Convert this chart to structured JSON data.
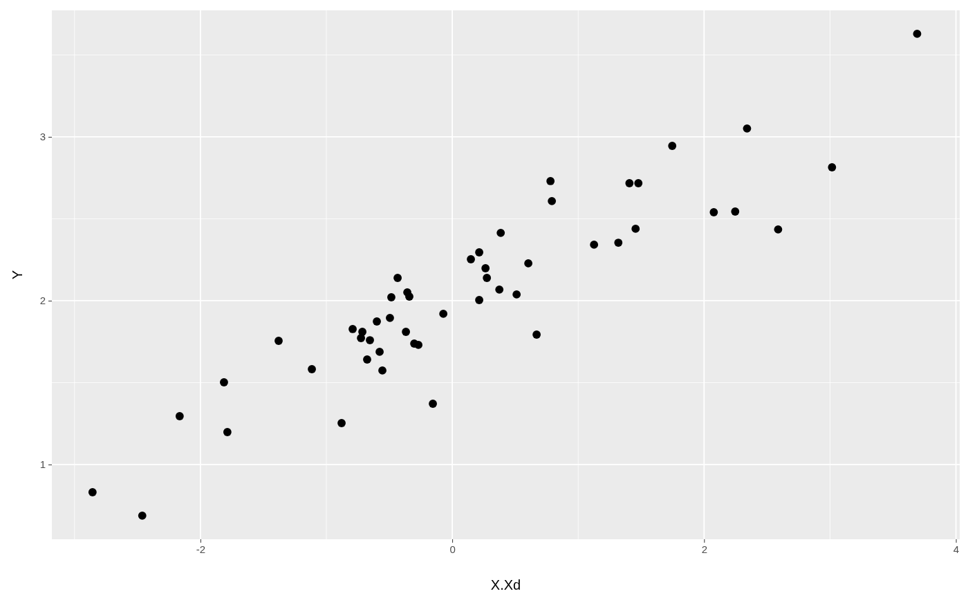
{
  "chart_data": {
    "type": "scatter",
    "xlabel": "X.Xd",
    "ylabel": "Y",
    "xlim": [
      -3.18,
      4.03
    ],
    "ylim": [
      0.544,
      3.772
    ],
    "xticks": [
      -2,
      0,
      2,
      4
    ],
    "yticks": [
      1,
      2,
      3
    ],
    "grid": true,
    "marker": "circle",
    "x": [
      -2.857,
      -2.462,
      -2.165,
      -1.813,
      -1.786,
      -1.379,
      -1.115,
      -0.879,
      -0.791,
      -0.725,
      -0.714,
      -0.676,
      -0.654,
      -0.599,
      -0.577,
      -0.555,
      -0.495,
      -0.484,
      -0.434,
      -0.368,
      -0.357,
      -0.341,
      -0.302,
      -0.269,
      -0.154,
      -0.071,
      0.148,
      0.214,
      0.214,
      0.264,
      0.275,
      0.374,
      0.385,
      0.511,
      0.604,
      0.67,
      0.78,
      0.791,
      1.126,
      1.319,
      1.407,
      1.456,
      1.478,
      1.747,
      2.077,
      2.247,
      2.341,
      2.588,
      3.016,
      3.692
    ],
    "series": [
      {
        "color": "#000000",
        "values": [
          0.831,
          0.688,
          1.295,
          1.502,
          1.198,
          1.755,
          1.582,
          1.253,
          1.827,
          1.772,
          1.81,
          1.641,
          1.759,
          1.873,
          1.688,
          1.574,
          1.895,
          2.021,
          2.139,
          1.81,
          2.051,
          2.025,
          1.738,
          1.73,
          1.371,
          1.92,
          2.253,
          2.295,
          2.004,
          2.198,
          2.139,
          2.068,
          2.414,
          2.038,
          2.228,
          1.793,
          2.73,
          2.608,
          2.342,
          2.354,
          2.717,
          2.439,
          2.717,
          2.945,
          2.54,
          2.544,
          3.051,
          2.435,
          2.814,
          3.629
        ]
      }
    ]
  }
}
